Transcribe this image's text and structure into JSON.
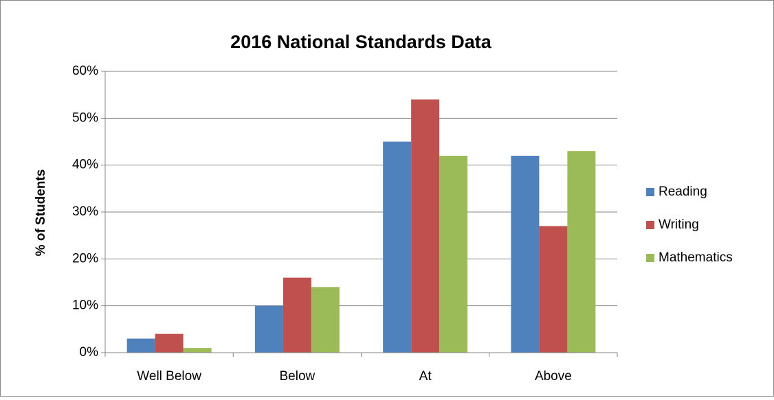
{
  "chart_data": {
    "type": "bar",
    "title": "2016 National Standards Data",
    "y_label": "% of Students",
    "categories": [
      "Well Below",
      "Below",
      "At",
      "Above"
    ],
    "series": [
      {
        "name": "Reading",
        "color": "#4f81bd",
        "values": [
          3,
          10,
          45,
          42
        ]
      },
      {
        "name": "Writing",
        "color": "#c0504d",
        "values": [
          4,
          16,
          54,
          27
        ]
      },
      {
        "name": "Mathematics",
        "color": "#9bbb59",
        "values": [
          1,
          14,
          42,
          43
        ]
      }
    ],
    "ylim": [
      0,
      60
    ],
    "yticks": [
      {
        "value": 0,
        "label": "0%"
      },
      {
        "value": 10,
        "label": "10%"
      },
      {
        "value": 20,
        "label": "20%"
      },
      {
        "value": 30,
        "label": "30%"
      },
      {
        "value": 40,
        "label": "40%"
      },
      {
        "value": 50,
        "label": "50%"
      },
      {
        "value": 60,
        "label": "60%"
      }
    ],
    "grid": true,
    "legend": "right"
  }
}
